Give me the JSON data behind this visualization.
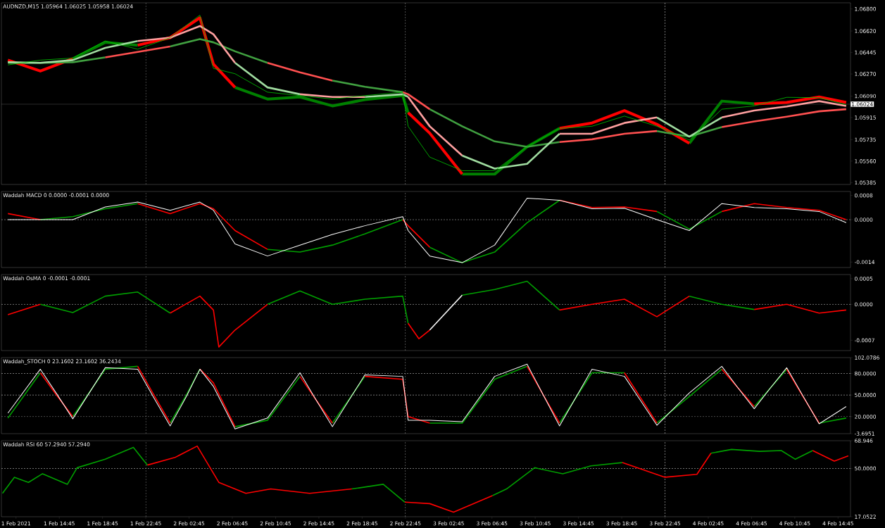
{
  "chart_data": [
    {
      "type": "line",
      "title": "AUDNZD,M15  1.05964 1.06025 1.05958 1.06024",
      "tick_labels": "y",
      "x": [
        "2021-02-01T10:00",
        "2021-02-01T13:00",
        "2021-02-01T16:00",
        "2021-02-01T19:00",
        "2021-02-01T22:00",
        "2021-02-02T01:00",
        "2021-02-02T03:45",
        "2021-02-02T05:00",
        "2021-02-02T07:00",
        "2021-02-02T10:00",
        "2021-02-02T13:00",
        "2021-02-02T16:00",
        "2021-02-02T19:00",
        "2021-02-02T22:30",
        "2021-02-02T23:00",
        "2021-02-03T01:00",
        "2021-02-03T04:00",
        "2021-02-03T07:00",
        "2021-02-03T10:00",
        "2021-02-03T13:00",
        "2021-02-03T16:00",
        "2021-02-03T19:00",
        "2021-02-03T22:00",
        "2021-02-04T01:00",
        "2021-02-04T04:00",
        "2021-02-04T07:00",
        "2021-02-04T10:00",
        "2021-02-04T13:00",
        "2021-02-04T15:30"
      ],
      "xlim": [
        "2021-02-01T09:24",
        "2021-02-04T15:54"
      ],
      "ylim": [
        1.0537,
        1.0685
      ],
      "yticks": [
        {
          "value": 1.068,
          "label": "1.06800"
        },
        {
          "value": 1.0662,
          "label": "1.06620"
        },
        {
          "value": 1.06445,
          "label": "1.06445"
        },
        {
          "value": 1.0627,
          "label": "1.06270"
        },
        {
          "value": 1.0609,
          "label": "1.06090"
        },
        {
          "value": 1.05915,
          "label": "1.05915"
        },
        {
          "value": 1.05735,
          "label": "1.05735"
        },
        {
          "value": 1.0556,
          "label": "1.05560"
        },
        {
          "value": 1.05385,
          "label": "1.05385"
        }
      ],
      "series": [
        {
          "color": "#008000",
          "values": [
            null,
            null,
            1.06394,
            1.06528,
            1.06505,
            null,
            null,
            null,
            1.06161,
            1.06066,
            1.06083,
            1.0601,
            1.06061,
            1.06094,
            1.05955,
            null,
            1.05454,
            1.05454,
            1.05677,
            1.05827,
            null,
            null,
            null,
            1.05705,
            1.06049,
            1.06027,
            null,
            null,
            null
          ]
        },
        {
          "color": "#ff0000",
          "values": [
            1.06383,
            1.06294,
            1.06394,
            null,
            1.06505,
            1.06566,
            1.06728,
            1.0635,
            1.06161,
            null,
            null,
            null,
            null,
            null,
            1.05955,
            1.05788,
            1.05454,
            null,
            null,
            1.05827,
            1.05871,
            1.05972,
            1.0586,
            1.05705,
            null,
            1.06027,
            1.06038,
            1.06083,
            1.06038
          ]
        },
        {
          "color": "#40a040",
          "values": [
            1.06361,
            1.06361,
            1.06366,
            1.06405,
            null,
            1.06494,
            1.06555,
            1.06528,
            1.06455,
            1.06361,
            null,
            1.06216,
            1.06166,
            1.06122,
            null,
            1.05983,
            1.05844,
            1.05721,
            1.05677,
            1.05716,
            null,
            null,
            1.05805,
            1.0576,
            1.05838,
            null,
            null,
            null,
            null
          ]
        },
        {
          "color": "#ff5050",
          "values": [
            null,
            null,
            null,
            1.06405,
            1.0645,
            1.06494,
            null,
            null,
            null,
            1.06361,
            1.06283,
            1.06216,
            null,
            1.06122,
            1.06105,
            1.05983,
            null,
            null,
            null,
            1.05716,
            1.05738,
            1.05783,
            1.05805,
            null,
            1.05838,
            1.05883,
            1.05922,
            1.05966,
            1.05983
          ]
        },
        {
          "color": "#a0dca0",
          "values": [
            1.06366,
            1.06361,
            1.06383,
            1.06483,
            1.06539,
            null,
            null,
            null,
            1.06361,
            1.06161,
            1.06105,
            null,
            1.06083,
            1.06105,
            1.06083,
            null,
            1.05605,
            1.05499,
            1.05538,
            1.05783,
            null,
            null,
            1.05916,
            1.0576,
            1.05916,
            null,
            null,
            null,
            null
          ]
        },
        {
          "color": "#ffa0a0",
          "values": [
            null,
            null,
            null,
            null,
            1.06539,
            1.06566,
            1.06661,
            1.06594,
            1.06361,
            null,
            1.06105,
            1.06083,
            1.06083,
            null,
            1.06083,
            1.05844,
            1.05605,
            null,
            null,
            1.05783,
            1.05783,
            1.05871,
            1.05916,
            null,
            1.05916,
            1.05972,
            1.06005,
            1.06049,
            1.0601
          ]
        },
        {
          "color": "#00c800",
          "values": [
            1.06344,
            1.06383,
            1.064,
            1.06539,
            1.06472,
            1.06566,
            1.0675,
            1.06316,
            1.06272,
            1.06122,
            1.06094,
            1.06066,
            1.06094,
            1.06122,
            1.05844,
            1.05593,
            1.05482,
            1.05482,
            1.05677,
            1.05827,
            1.05844,
            1.05927,
            1.05844,
            1.05732,
            1.05983,
            1.0601,
            1.0608,
            1.06077,
            1.0602
          ]
        }
      ],
      "ref_lines": [
        {
          "axis": "y",
          "value": 1.06024,
          "label": "1.06024",
          "color": "#8c8c8c",
          "line_style": "solid"
        },
        {
          "axis": "x",
          "value": "2021-02-01T22:45",
          "color": "#c8c8c8",
          "line_style": "dashed"
        },
        {
          "axis": "x",
          "value": "2021-02-02T22:45",
          "color": "#c8c8c8",
          "line_style": "dashed"
        },
        {
          "axis": "x",
          "value": "2021-02-03T22:45",
          "color": "#c8c8c8",
          "line_style": "dashed"
        }
      ]
    },
    {
      "type": "line",
      "title": "Waddah MACD 0 0.0000 -0.0001 0.0000",
      "tick_labels": "y",
      "x": [
        "2021-02-01T10:00",
        "2021-02-01T13:00",
        "2021-02-01T16:00",
        "2021-02-01T19:00",
        "2021-02-01T22:00",
        "2021-02-02T01:00",
        "2021-02-02T03:45",
        "2021-02-02T05:00",
        "2021-02-02T07:00",
        "2021-02-02T10:00",
        "2021-02-02T13:00",
        "2021-02-02T16:00",
        "2021-02-02T19:00",
        "2021-02-02T22:30",
        "2021-02-02T23:00",
        "2021-02-03T01:00",
        "2021-02-03T04:00",
        "2021-02-03T07:00",
        "2021-02-03T10:00",
        "2021-02-03T13:00",
        "2021-02-03T16:00",
        "2021-02-03T19:00",
        "2021-02-03T22:00",
        "2021-02-04T01:00",
        "2021-02-04T04:00",
        "2021-02-04T07:00",
        "2021-02-04T10:00",
        "2021-02-04T13:00",
        "2021-02-04T15:30"
      ],
      "xlim": [
        "2021-02-01T09:24",
        "2021-02-04T15:54"
      ],
      "ylim": [
        -0.00158,
        0.00093
      ],
      "yticks": [
        {
          "value": 0.0008,
          "label": "0.0008"
        },
        {
          "value": 0,
          "label": "0.0000"
        },
        {
          "value": -0.0014,
          "label": "-0.0014"
        }
      ],
      "series": [
        {
          "color": "#00a000",
          "values": [
            null,
            0,
            0.0001,
            0.00036,
            0.00053,
            null,
            null,
            null,
            null,
            -0.00098,
            -0.00107,
            -0.00084,
            -0.00047,
            0,
            null,
            -0.00091,
            -0.00142,
            -0.00107,
            -0.0001,
            0.00064,
            null,
            null,
            0.00027,
            -0.00031,
            0.00027,
            null,
            null,
            null,
            null
          ]
        },
        {
          "color": "#ff0000",
          "values": [
            0.0002,
            0,
            null,
            null,
            0.00053,
            0.0002,
            0.00053,
            0.00036,
            -0.00036,
            -0.00098,
            null,
            null,
            null,
            0,
            -0.0002,
            -0.00091,
            null,
            null,
            null,
            0.00064,
            0.0004,
            0.00042,
            0.00027,
            null,
            0.00027,
            0.00053,
            0.0004,
            0.00031,
            0
          ]
        },
        {
          "color": "#ffffff",
          "values": [
            0,
            0,
            0,
            0.00042,
            0.00058,
            0.00031,
            0.00058,
            0.00031,
            -0.0008,
            -0.0012,
            -0.00084,
            -0.00049,
            -0.0002,
            0.0001,
            -0.00036,
            -0.0012,
            -0.00142,
            -0.00084,
            0.00071,
            0.00064,
            0.00036,
            0.00038,
            0,
            -0.00036,
            0.00053,
            0.0004,
            0.00036,
            0.00027,
            -0.0001
          ]
        }
      ],
      "ref_lines": [
        {
          "axis": "y",
          "value": 0,
          "color": "#c8c8c8",
          "line_style": "dashed"
        },
        {
          "axis": "x",
          "value": "2021-02-01T22:45",
          "color": "#c8c8c8",
          "line_style": "dashed"
        },
        {
          "axis": "x",
          "value": "2021-02-02T22:45",
          "color": "#c8c8c8",
          "line_style": "dashed"
        },
        {
          "axis": "x",
          "value": "2021-02-03T22:45",
          "color": "#c8c8c8",
          "line_style": "dashed"
        }
      ]
    },
    {
      "type": "line",
      "title": "Waddah OsMA 0 -0.0001 -0.0001",
      "tick_labels": "y",
      "x": [
        "2021-02-01T10:00",
        "2021-02-01T13:00",
        "2021-02-01T16:00",
        "2021-02-01T19:00",
        "2021-02-01T22:00",
        "2021-02-02T01:00",
        "2021-02-02T03:45",
        "2021-02-02T05:00",
        "2021-02-02T05:30",
        "2021-02-02T07:00",
        "2021-02-02T10:00",
        "2021-02-02T13:00",
        "2021-02-02T16:00",
        "2021-02-02T19:00",
        "2021-02-02T22:30",
        "2021-02-02T23:00",
        "2021-02-03T00:00",
        "2021-02-03T01:00",
        "2021-02-03T04:00",
        "2021-02-03T07:00",
        "2021-02-03T10:00",
        "2021-02-03T13:00",
        "2021-02-03T16:00",
        "2021-02-03T19:00",
        "2021-02-03T22:00",
        "2021-02-04T01:00",
        "2021-02-04T04:00",
        "2021-02-04T07:00",
        "2021-02-04T10:00",
        "2021-02-04T13:00",
        "2021-02-04T15:30"
      ],
      "xlim": [
        "2021-02-01T09:24",
        "2021-02-04T15:54"
      ],
      "ylim": [
        -0.0009,
        0.00058
      ],
      "yticks": [
        {
          "value": 0.0005,
          "label": "0.0005"
        },
        {
          "value": 0,
          "label": "0.0000"
        },
        {
          "value": -0.0007,
          "label": "-0.0007"
        }
      ],
      "series": [
        {
          "color": "#00a000",
          "values": [
            null,
            0,
            -0.00016,
            0.00016,
            0.00024,
            -0.00017,
            null,
            null,
            null,
            null,
            0,
            0.00026,
            0,
            0.0001,
            0.00016,
            -0.00037,
            null,
            null,
            0.00018,
            0.00029,
            0.00045,
            -0.00011,
            null,
            null,
            null,
            0.00016,
            0,
            -0.0001,
            null,
            null,
            null
          ]
        },
        {
          "color": "#ff0000",
          "values": [
            -0.0002,
            0,
            null,
            null,
            null,
            -0.00017,
            0.00016,
            -0.00011,
            -0.00083,
            -0.0005,
            0,
            null,
            null,
            null,
            null,
            -0.00037,
            -0.00067,
            -0.0005,
            null,
            null,
            null,
            -0.00011,
            0,
            0.0001,
            -0.00024,
            0.00016,
            null,
            -0.0001,
            0,
            -0.00017,
            -0.00011
          ]
        },
        {
          "color": "#ffffff",
          "values": [
            null,
            null,
            null,
            null,
            null,
            null,
            null,
            null,
            null,
            null,
            null,
            null,
            null,
            null,
            null,
            null,
            null,
            -0.0005,
            0.00018,
            null,
            null,
            null,
            null,
            null,
            null,
            null,
            null,
            null,
            null,
            null,
            null
          ]
        }
      ],
      "ref_lines": [
        {
          "axis": "y",
          "value": 0,
          "color": "#c8c8c8",
          "line_style": "dashed"
        },
        {
          "axis": "x",
          "value": "2021-02-01T22:45",
          "color": "#c8c8c8",
          "line_style": "dashed"
        },
        {
          "axis": "x",
          "value": "2021-02-02T22:45",
          "color": "#c8c8c8",
          "line_style": "dashed"
        },
        {
          "axis": "x",
          "value": "2021-02-03T22:45",
          "color": "#c8c8c8",
          "line_style": "dashed"
        }
      ]
    },
    {
      "type": "line",
      "title": "Waddah_STOCH 0 23.1602 23.1602 36.2434",
      "tick_labels": "y",
      "x": [
        "2021-02-01T10:00",
        "2021-02-01T13:00",
        "2021-02-01T14:30",
        "2021-02-01T16:00",
        "2021-02-01T19:00",
        "2021-02-01T22:00",
        "2021-02-01T23:30",
        "2021-02-02T01:00",
        "2021-02-02T02:30",
        "2021-02-02T03:45",
        "2021-02-02T05:00",
        "2021-02-02T07:00",
        "2021-02-02T10:00",
        "2021-02-02T13:00",
        "2021-02-02T14:30",
        "2021-02-02T16:00",
        "2021-02-02T17:30",
        "2021-02-02T19:00",
        "2021-02-02T22:30",
        "2021-02-02T23:00",
        "2021-02-03T01:00",
        "2021-02-03T04:00",
        "2021-02-03T07:00",
        "2021-02-03T10:00",
        "2021-02-03T11:30",
        "2021-02-03T13:00",
        "2021-02-03T16:00",
        "2021-02-03T19:00",
        "2021-02-03T20:30",
        "2021-02-03T22:00",
        "2021-02-04T01:00",
        "2021-02-04T04:00",
        "2021-02-04T05:30",
        "2021-02-04T07:00",
        "2021-02-04T08:30",
        "2021-02-04T10:00",
        "2021-02-04T11:30",
        "2021-02-04T13:00",
        "2021-02-04T15:30"
      ],
      "xlim": [
        "2021-02-01T09:24",
        "2021-02-04T15:54"
      ],
      "ylim": [
        -3.6951,
        102.0786
      ],
      "yticks": [
        {
          "value": 102.0786,
          "label": "102.0786"
        },
        {
          "value": 80,
          "label": "80.0000"
        },
        {
          "value": 50,
          "label": "50.0000"
        },
        {
          "value": 20,
          "label": "20.0000"
        },
        {
          "value": -3.6951,
          "label": "-3.6951"
        }
      ],
      "series": [
        {
          "color": "#00a000",
          "values": [
            18,
            81,
            null,
            20,
            86,
            90,
            null,
            11,
            50,
            86,
            null,
            6,
            15,
            76,
            null,
            11,
            43,
            76,
            null,
            null,
            11,
            11,
            72,
            90,
            null,
            11,
            81,
            81,
            null,
            11,
            48,
            86,
            null,
            34,
            60,
            86,
            null,
            11,
            18
          ]
        },
        {
          "color": "#ff0000",
          "values": [
            null,
            81,
            50,
            20,
            null,
            90,
            50,
            11,
            null,
            86,
            67,
            6,
            null,
            76,
            43,
            11,
            null,
            76,
            72,
            20,
            11,
            null,
            null,
            90,
            50,
            11,
            null,
            81,
            46,
            11,
            null,
            86,
            60,
            34,
            null,
            86,
            48,
            11,
            null
          ]
        },
        {
          "color": "#ffffff",
          "values": [
            25,
            86,
            52,
            17,
            88,
            86,
            46,
            7,
            48,
            86,
            62,
            3,
            18,
            81,
            43,
            6,
            42,
            78,
            76,
            15,
            15,
            13,
            76,
            93,
            50,
            7,
            86,
            76,
            42,
            8,
            53,
            90,
            60,
            31,
            60,
            88,
            49,
            10,
            34
          ]
        }
      ],
      "ref_lines": [
        {
          "axis": "y",
          "value": 80,
          "color": "#c8c8c8",
          "line_style": "dashed"
        },
        {
          "axis": "y",
          "value": 50,
          "color": "#c8c8c8",
          "line_style": "dashed"
        },
        {
          "axis": "y",
          "value": 20,
          "color": "#c8c8c8",
          "line_style": "dashed"
        },
        {
          "axis": "x",
          "value": "2021-02-01T22:45",
          "color": "#c8c8c8",
          "line_style": "dashed"
        },
        {
          "axis": "x",
          "value": "2021-02-02T22:45",
          "color": "#c8c8c8",
          "line_style": "dashed"
        },
        {
          "axis": "x",
          "value": "2021-02-03T22:45",
          "color": "#c8c8c8",
          "line_style": "dashed"
        }
      ]
    },
    {
      "type": "line",
      "title": "Waddah RSI 60 57.2940 57.2940",
      "x": [
        "2021-02-01T09:30",
        "2021-02-01T10:36",
        "2021-02-01T11:54",
        "2021-02-01T13:12",
        "2021-02-01T15:30",
        "2021-02-01T16:24",
        "2021-02-01T19:00",
        "2021-02-01T21:36",
        "2021-02-01T22:54",
        "2021-02-02T01:30",
        "2021-02-02T03:30",
        "2021-02-02T05:30",
        "2021-02-02T08:00",
        "2021-02-02T10:18",
        "2021-02-02T13:54",
        "2021-02-02T17:48",
        "2021-02-02T20:42",
        "2021-02-02T22:42",
        "2021-02-03T01:00",
        "2021-02-03T03:12",
        "2021-02-03T06:48",
        "2021-02-03T08:06",
        "2021-02-03T10:42",
        "2021-02-03T13:18",
        "2021-02-03T15:54",
        "2021-02-03T18:48",
        "2021-02-03T22:45",
        "2021-02-04T01:42",
        "2021-02-04T03:00",
        "2021-02-04T04:54",
        "2021-02-04T07:30",
        "2021-02-04T09:30",
        "2021-02-04T10:48",
        "2021-02-04T12:24",
        "2021-02-04T14:24",
        "2021-02-04T15:42"
      ],
      "xlim": [
        "2021-02-01T09:24",
        "2021-02-04T15:54"
      ],
      "ylim": [
        17.0522,
        68.946
      ],
      "xticks": [
        {
          "value": "2021-02-01T10:45",
          "label": "1 Feb 2021"
        },
        {
          "value": "2021-02-01T14:45",
          "label": "1 Feb 14:45"
        },
        {
          "value": "2021-02-01T18:45",
          "label": "1 Feb 18:45"
        },
        {
          "value": "2021-02-01T22:45",
          "label": "1 Feb 22:45"
        },
        {
          "value": "2021-02-02T02:45",
          "label": "2 Feb 02:45"
        },
        {
          "value": "2021-02-02T06:45",
          "label": "2 Feb 06:45"
        },
        {
          "value": "2021-02-02T10:45",
          "label": "2 Feb 10:45"
        },
        {
          "value": "2021-02-02T14:45",
          "label": "2 Feb 14:45"
        },
        {
          "value": "2021-02-02T18:45",
          "label": "2 Feb 18:45"
        },
        {
          "value": "2021-02-02T22:45",
          "label": "2 Feb 22:45"
        },
        {
          "value": "2021-02-03T02:45",
          "label": "3 Feb 02:45"
        },
        {
          "value": "2021-02-03T06:45",
          "label": "3 Feb 06:45"
        },
        {
          "value": "2021-02-03T10:45",
          "label": "3 Feb 10:45"
        },
        {
          "value": "2021-02-03T14:45",
          "label": "3 Feb 14:45"
        },
        {
          "value": "2021-02-03T18:45",
          "label": "3 Feb 18:45"
        },
        {
          "value": "2021-02-03T22:45",
          "label": "3 Feb 22:45"
        },
        {
          "value": "2021-02-04T02:45",
          "label": "4 Feb 02:45"
        },
        {
          "value": "2021-02-04T06:45",
          "label": "4 Feb 06:45"
        },
        {
          "value": "2021-02-04T10:45",
          "label": "4 Feb 10:45"
        },
        {
          "value": "2021-02-04T14:45",
          "label": "4 Feb 14:45"
        }
      ],
      "yticks": [
        {
          "value": 68.946,
          "label": "68.946"
        },
        {
          "value": 50,
          "label": "50.0000"
        },
        {
          "value": 17.0522,
          "label": "17.0522"
        }
      ],
      "series": [
        {
          "color": "#00a000",
          "values": [
            33,
            44,
            40.5,
            46.4,
            39.2,
            50.5,
            56.3,
            64.4,
            52.3,
            null,
            null,
            null,
            null,
            null,
            null,
            36,
            39.2,
            27,
            null,
            null,
            31.5,
            36,
            50.5,
            46.4,
            51.8,
            54,
            null,
            null,
            60.4,
            63,
            61.7,
            62.2,
            56.3,
            62.2,
            null,
            null
          ]
        },
        {
          "color": "#ff0000",
          "values": [
            null,
            null,
            null,
            null,
            null,
            null,
            null,
            null,
            52.3,
            57.7,
            65.3,
            40.5,
            33,
            36,
            33,
            36,
            null,
            27,
            26,
            20.2,
            31.5,
            null,
            null,
            null,
            null,
            54,
            44,
            46,
            60.4,
            null,
            null,
            null,
            null,
            62.2,
            55,
            58.6
          ]
        }
      ],
      "ref_lines": [
        {
          "axis": "y",
          "value": 50,
          "color": "#c8c8c8",
          "line_style": "dashed"
        },
        {
          "axis": "x",
          "value": "2021-02-01T22:45",
          "color": "#c8c8c8",
          "line_style": "dashed"
        },
        {
          "axis": "x",
          "value": "2021-02-02T22:45",
          "color": "#c8c8c8",
          "line_style": "dashed"
        },
        {
          "axis": "x",
          "value": "2021-02-03T22:45",
          "color": "#c8c8c8",
          "line_style": "dashed"
        }
      ]
    }
  ]
}
